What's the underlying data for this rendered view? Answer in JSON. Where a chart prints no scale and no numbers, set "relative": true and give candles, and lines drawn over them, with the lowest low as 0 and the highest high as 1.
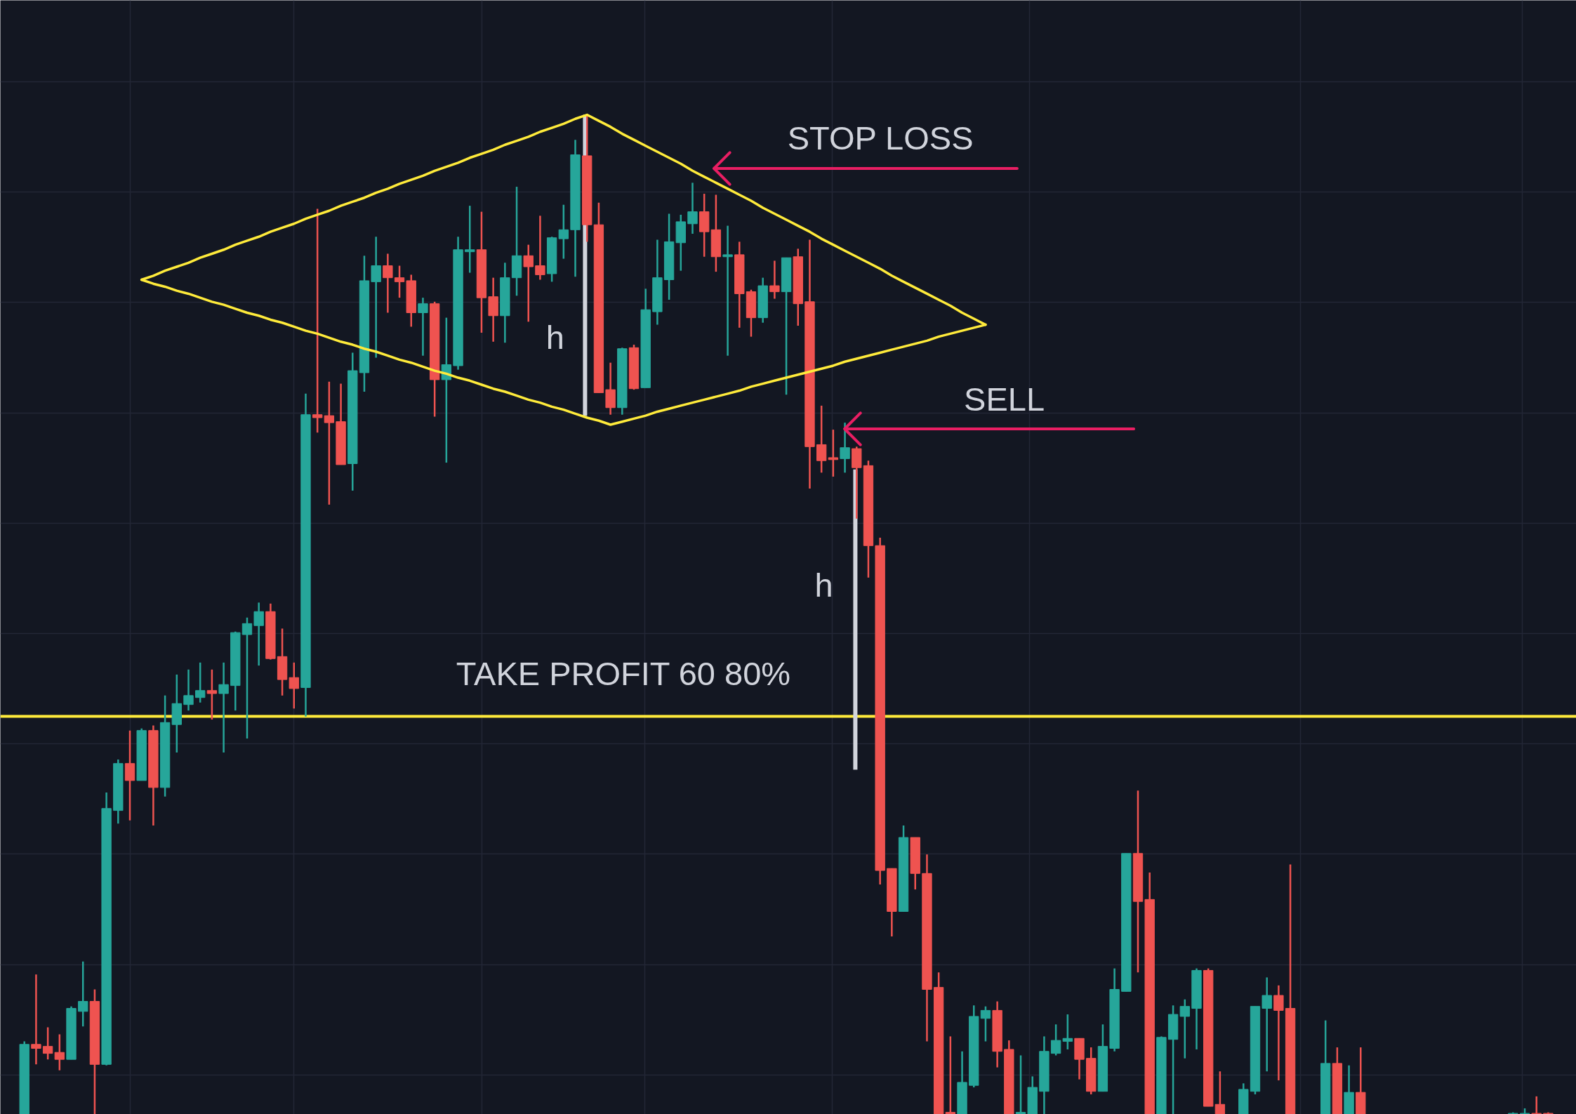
{
  "chart_data": {
    "type": "candlestick",
    "relative": true,
    "grid": true,
    "categories": [
      null,
      null,
      null,
      null,
      null,
      null,
      null,
      null,
      null,
      null,
      null,
      null,
      null,
      null,
      null,
      null,
      null,
      null,
      null,
      null,
      null,
      null,
      null,
      null,
      null,
      null,
      null,
      null,
      null,
      null,
      null,
      null,
      null,
      null,
      null,
      null,
      null,
      null,
      null,
      null,
      null,
      null,
      null,
      null,
      null,
      null,
      null,
      null,
      null,
      null,
      null,
      null,
      null,
      null,
      null,
      null,
      null,
      null,
      null,
      null,
      null,
      null,
      null,
      null,
      null,
      null,
      null,
      null,
      null,
      null,
      null,
      null,
      null,
      null,
      null,
      null,
      null,
      null,
      null,
      null,
      null,
      null,
      null,
      null,
      null,
      null,
      null,
      null,
      null,
      null,
      null,
      null,
      null,
      null,
      null,
      null,
      null,
      null,
      null,
      null,
      null,
      null,
      null,
      null,
      null,
      null,
      null,
      null,
      null,
      null,
      null,
      null,
      null,
      null,
      null,
      null,
      null,
      null,
      null,
      null,
      null,
      null,
      null,
      null,
      null,
      null,
      null,
      null,
      null,
      null,
      null
    ],
    "ohlc": [
      [
        0,
        0.073,
        0,
        0.07
      ],
      [
        0.07,
        0.14,
        0.05,
        0.066
      ],
      [
        0.068,
        0.087,
        0.055,
        0.061
      ],
      [
        0.062,
        0.08,
        0.044,
        0.055
      ],
      [
        0.055,
        0.108,
        0.055,
        0.106
      ],
      [
        0.103,
        0.153,
        0.088,
        0.113
      ],
      [
        0.113,
        0.125,
        0,
        0.05
      ],
      [
        0.05,
        0.322,
        0.049,
        0.306
      ],
      [
        0.304,
        0.355,
        0.291,
        0.351
      ],
      [
        0.351,
        0.384,
        0.294,
        0.334
      ],
      [
        0.334,
        0.386,
        0.334,
        0.384
      ],
      [
        0.384,
        0.389,
        0.289,
        0.327
      ],
      [
        0.327,
        0.419,
        0.318,
        0.392
      ],
      [
        0.39,
        0.44,
        0.362,
        0.411
      ],
      [
        0.41,
        0.445,
        0.404,
        0.419
      ],
      [
        0.417,
        0.452,
        0.412,
        0.424
      ],
      [
        0.424,
        0.445,
        0.395,
        0.421
      ],
      [
        0.421,
        0.452,
        0.362,
        0.43
      ],
      [
        0.429,
        0.483,
        0.404,
        0.482
      ],
      [
        0.48,
        0.497,
        0.376,
        0.491
      ],
      [
        0.489,
        0.512,
        0.449,
        0.503
      ],
      [
        0.503,
        0.511,
        0.455,
        0.456
      ],
      [
        0.458,
        0.486,
        0.419,
        0.435
      ],
      [
        0.437,
        0.452,
        0.406,
        0.426
      ],
      [
        0.427,
        0.721,
        0.398,
        0.7
      ],
      [
        0.7,
        0.906,
        0.682,
        0.697
      ],
      [
        0.699,
        0.733,
        0.61,
        0.692
      ],
      [
        0.693,
        0.731,
        0.65,
        0.65
      ],
      [
        0.651,
        0.762,
        0.624,
        0.744
      ],
      [
        0.742,
        0.859,
        0.723,
        0.834
      ],
      [
        0.833,
        0.878,
        0.757,
        0.849
      ],
      [
        0.849,
        0.861,
        0.802,
        0.837
      ],
      [
        0.837,
        0.849,
        0.817,
        0.833
      ],
      [
        0.834,
        0.84,
        0.788,
        0.802
      ],
      [
        0.802,
        0.817,
        0.759,
        0.811
      ],
      [
        0.811,
        0.813,
        0.698,
        0.735
      ],
      [
        0.735,
        0.797,
        0.652,
        0.75
      ],
      [
        0.749,
        0.878,
        0.745,
        0.865
      ],
      [
        0.863,
        0.909,
        0.842,
        0.865
      ],
      [
        0.865,
        0.903,
        0.782,
        0.817
      ],
      [
        0.818,
        0.837,
        0.773,
        0.799
      ],
      [
        0.799,
        0.852,
        0.772,
        0.837
      ],
      [
        0.837,
        0.928,
        0.819,
        0.859
      ],
      [
        0.859,
        0.87,
        0.793,
        0.848
      ],
      [
        0.849,
        0.899,
        0.835,
        0.84
      ],
      [
        0.841,
        0.878,
        0.833,
        0.877
      ],
      [
        0.876,
        0.91,
        0.856,
        0.885
      ],
      [
        0.885,
        0.975,
        0.838,
        0.96
      ],
      [
        0.959,
        1.0,
        0.873,
        0.89
      ],
      [
        0.89,
        0.912,
        0.722,
        0.722
      ],
      [
        0.725,
        0.752,
        0.7,
        0.707
      ],
      [
        0.707,
        0.767,
        0.7,
        0.766
      ],
      [
        0.767,
        0.77,
        0.725,
        0.726
      ],
      [
        0.727,
        0.826,
        0.727,
        0.805
      ],
      [
        0.803,
        0.875,
        0.79,
        0.837
      ],
      [
        0.835,
        0.901,
        0.815,
        0.873
      ],
      [
        0.872,
        0.9,
        0.844,
        0.893
      ],
      [
        0.891,
        0.932,
        0.881,
        0.903
      ],
      [
        0.903,
        0.921,
        0.858,
        0.883
      ],
      [
        0.885,
        0.92,
        0.843,
        0.858
      ],
      [
        0.858,
        0.889,
        0.759,
        0.86
      ],
      [
        0.86,
        0.873,
        0.787,
        0.821
      ],
      [
        0.823,
        0.825,
        0.778,
        0.797
      ],
      [
        0.797,
        0.837,
        0.792,
        0.829
      ],
      [
        0.829,
        0.854,
        0.816,
        0.823
      ],
      [
        0.823,
        0.857,
        0.72,
        0.857
      ],
      [
        0.858,
        0.866,
        0.789,
        0.811
      ],
      [
        0.813,
        0.875,
        0.626,
        0.668
      ],
      [
        0.67,
        0.709,
        0.642,
        0.654
      ],
      [
        0.657,
        0.685,
        0.638,
        0.655
      ],
      [
        0.656,
        0.692,
        0.642,
        0.667
      ],
      [
        0.666,
        0.668,
        0.596,
        0.647
      ],
      [
        0.649,
        0.654,
        0.537,
        0.569
      ],
      [
        0.569,
        0.577,
        0.23,
        0.244
      ],
      [
        0.246,
        0.246,
        0.178,
        0.203
      ],
      [
        0.203,
        0.289,
        0.203,
        0.277
      ],
      [
        0.277,
        0.277,
        0.225,
        0.241
      ],
      [
        0.241,
        0.26,
        0.073,
        0.125
      ],
      [
        0.127,
        0.142,
        0,
        0
      ],
      [
        0.002,
        0.078,
        0,
        0
      ],
      [
        0,
        0.063,
        0,
        0.032
      ],
      [
        0.029,
        0.109,
        0.027,
        0.098
      ],
      [
        0.096,
        0.108,
        0.073,
        0.104
      ],
      [
        0.104,
        0.113,
        0.047,
        0.063
      ],
      [
        0.065,
        0.074,
        0,
        0
      ],
      [
        0,
        0.059,
        0,
        0.002
      ],
      [
        0,
        0.038,
        0,
        0.027
      ],
      [
        0.023,
        0.078,
        0,
        0.063
      ],
      [
        0.061,
        0.09,
        0.059,
        0.074
      ],
      [
        0.073,
        0.1,
        0.065,
        0.076
      ],
      [
        0.076,
        0.076,
        0.035,
        0.055
      ],
      [
        0.056,
        0.067,
        0.02,
        0.023
      ],
      [
        0.023,
        0.09,
        0.023,
        0.068
      ],
      [
        0.066,
        0.146,
        0.063,
        0.125
      ],
      [
        0.123,
        0.261,
        0.123,
        0.261
      ],
      [
        0.261,
        0.324,
        0.142,
        0.213
      ],
      [
        0.215,
        0.242,
        0,
        0
      ],
      [
        0,
        0.078,
        0,
        0.077
      ],
      [
        0.075,
        0.109,
        0,
        0.1
      ],
      [
        0.098,
        0.115,
        0.056,
        0.108
      ],
      [
        0.106,
        0.146,
        0.065,
        0.144
      ],
      [
        0.144,
        0.146,
        0.008,
        0.008
      ],
      [
        0.01,
        0.043,
        0,
        0
      ],
      null,
      [
        0,
        0.031,
        0,
        0.025
      ],
      [
        0.023,
        0.108,
        0.02,
        0.108
      ],
      [
        0.106,
        0.137,
        0.043,
        0.119
      ],
      [
        0.119,
        0.129,
        0.034,
        0.104
      ],
      [
        0.106,
        0.25,
        0,
        0
      ],
      null,
      null,
      [
        0,
        0.094,
        0,
        0.051
      ],
      [
        0.051,
        0.067,
        0,
        0
      ],
      [
        0,
        0.049,
        0,
        0.022
      ],
      [
        0.022,
        0.067,
        0,
        0
      ],
      null,
      null,
      null,
      null,
      null,
      null,
      null,
      null,
      null,
      null,
      null,
      null,
      [
        0,
        0.002,
        0,
        0.001
      ],
      [
        0,
        0.006,
        0,
        0.001
      ],
      [
        0.001,
        0.018,
        0,
        0
      ],
      [
        0.001,
        0.002,
        0,
        0
      ]
    ],
    "colors": [
      "#26a69a",
      "#ef5350",
      "#ef5350",
      "#ef5350",
      "#26a69a",
      "#26a69a",
      "#ef5350",
      "#26a69a",
      "#26a69a",
      "#ef5350",
      "#26a69a",
      "#ef5350",
      "#26a69a",
      "#26a69a",
      "#26a69a",
      "#26a69a",
      "#ef5350",
      "#26a69a",
      "#26a69a",
      "#26a69a",
      "#26a69a",
      "#ef5350",
      "#ef5350",
      "#ef5350",
      "#26a69a",
      "#ef5350",
      "#ef5350",
      "#ef5350",
      "#26a69a",
      "#26a69a",
      "#26a69a",
      "#ef5350",
      "#ef5350",
      "#ef5350",
      "#26a69a",
      "#ef5350",
      "#26a69a",
      "#26a69a",
      "#26a69a",
      "#ef5350",
      "#ef5350",
      "#26a69a",
      "#26a69a",
      "#ef5350",
      "#ef5350",
      "#26a69a",
      "#26a69a",
      "#26a69a",
      "#ef5350",
      "#ef5350",
      "#ef5350",
      "#26a69a",
      "#ef5350",
      "#26a69a",
      "#26a69a",
      "#26a69a",
      "#26a69a",
      "#26a69a",
      "#ef5350",
      "#ef5350",
      "#26a69a",
      "#ef5350",
      "#ef5350",
      "#26a69a",
      "#ef5350",
      "#26a69a",
      "#ef5350",
      "#ef5350",
      "#ef5350",
      "#ef5350",
      "#26a69a",
      "#ef5350",
      "#ef5350",
      "#ef5350",
      "#ef5350",
      "#26a69a",
      "#ef5350",
      "#ef5350",
      "#ef5350",
      "#ef5350",
      "#26a69a",
      "#26a69a",
      "#26a69a",
      "#ef5350",
      "#ef5350",
      "#26a69a",
      "#26a69a",
      "#26a69a",
      "#26a69a",
      "#26a69a",
      "#ef5350",
      "#ef5350",
      "#26a69a",
      "#26a69a",
      "#26a69a",
      "#ef5350",
      "#ef5350",
      "#26a69a",
      "#26a69a",
      "#26a69a",
      "#26a69a",
      "#ef5350",
      "#ef5350",
      null,
      "#26a69a",
      "#26a69a",
      "#26a69a",
      "#ef5350",
      "#ef5350",
      null,
      null,
      "#26a69a",
      "#ef5350",
      "#26a69a",
      "#ef5350",
      null,
      null,
      null,
      null,
      null,
      null,
      null,
      null,
      null,
      null,
      null,
      null,
      "#26a69a",
      "#26a69a",
      "#ef5350",
      "#ef5350"
    ],
    "series": [
      {
        "type": "line",
        "color": "#ffeb3b",
        "values": [
          null,
          null,
          null,
          null,
          null,
          null,
          null,
          null,
          null,
          null,
          0.835,
          0.839,
          0.844,
          0.848,
          0.852,
          0.857,
          0.861,
          0.865,
          0.87,
          0.874,
          0.878,
          0.883,
          0.887,
          0.891,
          0.896,
          0.9,
          0.904,
          0.909,
          0.913,
          0.917,
          0.922,
          0.926,
          0.931,
          0.935,
          0.939,
          0.944,
          0.948,
          0.952,
          0.957,
          0.961,
          0.965,
          0.97,
          0.974,
          0.978,
          0.983,
          0.987,
          0.991,
          0.996,
          1.0,
          0.994,
          0.988,
          0.981,
          0.975,
          0.969,
          0.963,
          0.957,
          0.951,
          0.944,
          0.938,
          0.932,
          0.926,
          0.92,
          0.914,
          0.907,
          0.901,
          0.895,
          0.889,
          0.883,
          0.876,
          0.87,
          0.864,
          0.858,
          0.852,
          0.846,
          0.839,
          0.833,
          0.827,
          0.821,
          0.815,
          0.809,
          0.802,
          0.796,
          0.79,
          null,
          null,
          null,
          null,
          null,
          null,
          null,
          null,
          null,
          null,
          null,
          null,
          null,
          null,
          null,
          null,
          null,
          null,
          null,
          null,
          null,
          null,
          null,
          null,
          null,
          null,
          null,
          null,
          null,
          null,
          null,
          null,
          null,
          null,
          null,
          null,
          null,
          null,
          null,
          null,
          null,
          null,
          null,
          null,
          null,
          null,
          null,
          null
        ]
      },
      {
        "type": "line",
        "color": "#ffeb3b",
        "values": [
          null,
          null,
          null,
          null,
          null,
          null,
          null,
          null,
          null,
          null,
          0.835,
          0.831,
          0.828,
          0.824,
          0.821,
          0.817,
          0.813,
          0.81,
          0.806,
          0.802,
          0.799,
          0.795,
          0.792,
          0.788,
          0.784,
          0.781,
          0.777,
          0.773,
          0.77,
          0.766,
          0.763,
          0.759,
          0.755,
          0.752,
          0.748,
          0.744,
          0.741,
          0.737,
          0.734,
          0.73,
          0.726,
          0.723,
          0.719,
          0.715,
          0.712,
          0.708,
          0.705,
          0.701,
          0.697,
          0.694,
          0.69,
          0.693,
          0.696,
          0.699,
          0.703,
          0.706,
          0.709,
          0.712,
          0.715,
          0.718,
          0.721,
          0.724,
          0.728,
          0.731,
          0.734,
          0.737,
          0.74,
          0.743,
          0.746,
          0.749,
          0.753,
          0.756,
          0.759,
          0.762,
          0.765,
          0.768,
          0.771,
          0.774,
          0.778,
          0.781,
          0.784,
          0.787,
          0.79,
          null,
          null,
          null,
          null,
          null,
          null,
          null,
          null,
          null,
          null,
          null,
          null,
          null,
          null,
          null,
          null,
          null,
          null,
          null,
          null,
          null,
          null,
          null,
          null,
          null,
          null,
          null,
          null,
          null,
          null,
          null,
          null,
          null,
          null,
          null,
          null,
          null,
          null,
          null,
          null,
          null,
          null,
          null,
          null,
          null,
          null,
          null,
          null
        ]
      }
    ],
    "ref_lines": [
      {
        "axis": "y",
        "value": 0.398,
        "label": "TAKE PROFIT 60 80%",
        "color": "#ffeb3b"
      }
    ],
    "annotations": [
      "STOP LOSS",
      "SELL",
      "h",
      "h"
    ]
  }
}
